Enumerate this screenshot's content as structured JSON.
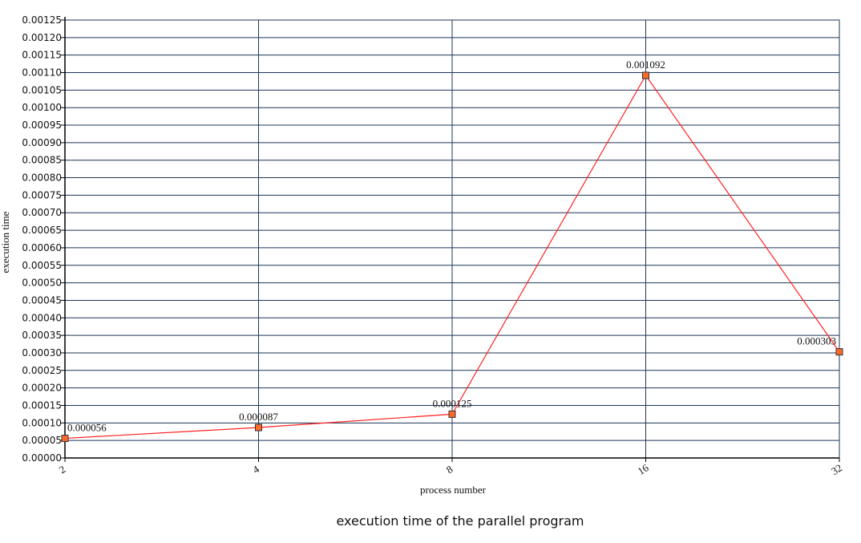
{
  "chart_data": {
    "type": "line",
    "title": "execution time of the parallel program",
    "xlabel": "process number",
    "ylabel": "execution time",
    "categories": [
      "2",
      "4",
      "8",
      "16",
      "32"
    ],
    "values": [
      5.6e-05,
      8.7e-05,
      0.000125,
      0.001092,
      0.000303
    ],
    "data_labels": [
      "0.000056",
      "0.000087",
      "0.000125",
      "0.001092",
      "0.000303"
    ],
    "ylim": [
      0,
      0.00125
    ],
    "ytick_step": 5e-05,
    "ytick_labels": [
      "0.00000",
      "0.00005",
      "0.00010",
      "0.00015",
      "0.00020",
      "0.00025",
      "0.00030",
      "0.00035",
      "0.00040",
      "0.00045",
      "0.00050",
      "0.00055",
      "0.00060",
      "0.00065",
      "0.00070",
      "0.00075",
      "0.00080",
      "0.00085",
      "0.00090",
      "0.00095",
      "0.00100",
      "0.00105",
      "0.00110",
      "0.00115",
      "0.00120",
      "0.00125"
    ],
    "grid": true,
    "legend": "none",
    "colors": {
      "line": "#ff2222",
      "marker_fill": "#ff6a2a",
      "marker_stroke": "#333333",
      "grid": "#1d3557"
    }
  }
}
